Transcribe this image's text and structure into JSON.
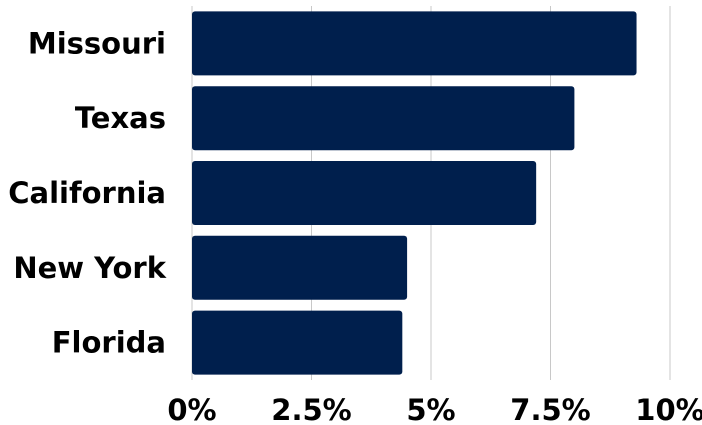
{
  "chart_data": {
    "type": "bar",
    "orientation": "horizontal",
    "categories": [
      "Missouri",
      "Texas",
      "California",
      "New York",
      "Florida"
    ],
    "values": [
      9.3,
      8.0,
      7.2,
      4.5,
      4.4
    ],
    "value_unit": "%",
    "xlim": [
      0,
      10
    ],
    "x_ticks": [
      0,
      2.5,
      5,
      7.5,
      10
    ],
    "x_tick_labels": [
      "0%",
      "2.5%",
      "5%",
      "7.5%",
      "10%"
    ],
    "title": "",
    "xlabel": "",
    "ylabel": "",
    "grid": "vertical",
    "legend": "none",
    "bar_color": "#001f4d"
  }
}
